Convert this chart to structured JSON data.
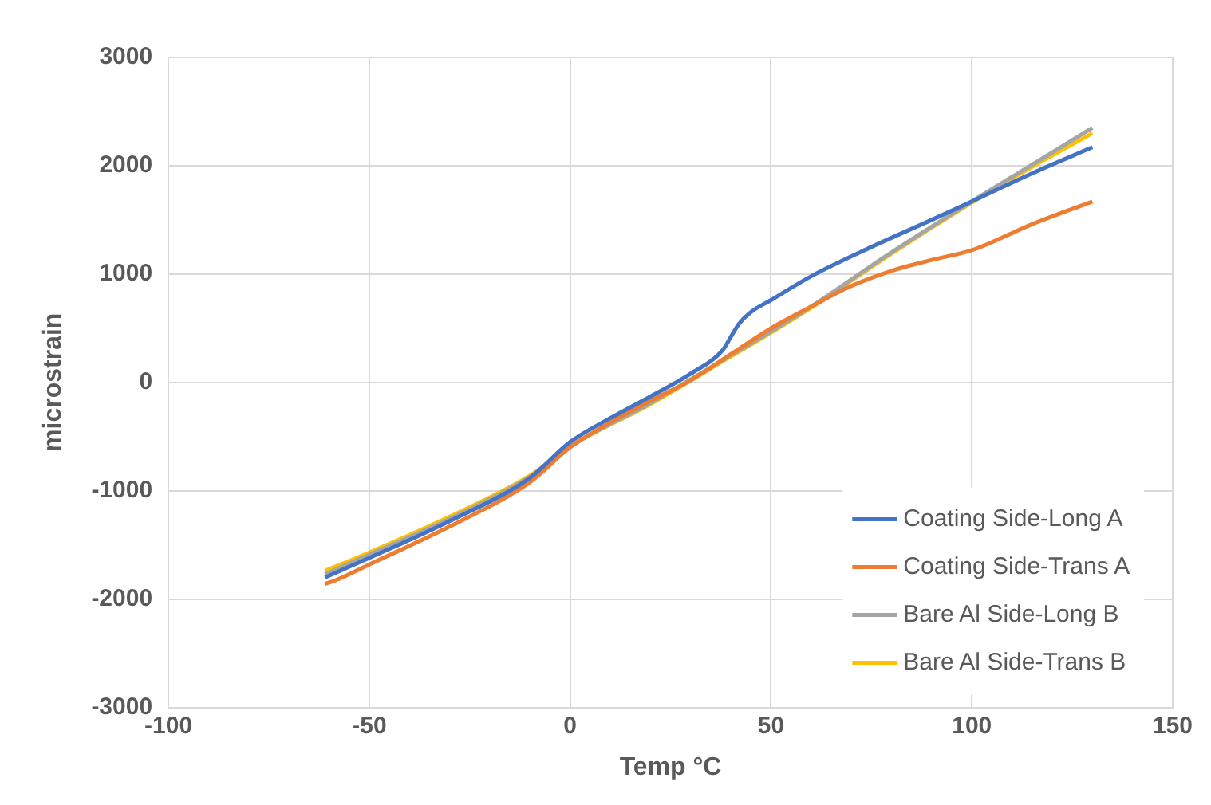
{
  "chart_data": {
    "type": "line",
    "xlabel": "Temp °C",
    "ylabel": "microstrain",
    "xlim": [
      -100,
      150
    ],
    "xticks": [
      -100,
      -50,
      0,
      50,
      100,
      150
    ],
    "ylim": [
      -3000,
      3000
    ],
    "yticks": [
      -3000,
      -2000,
      -1000,
      0,
      1000,
      2000,
      3000
    ],
    "grid": true,
    "legend": "bottom right",
    "marker": "none",
    "line_style": "solid",
    "series": [
      {
        "name": "Coating Side-Long A",
        "color": "#4472c4",
        "x": [
          -61,
          -50,
          -30,
          -10,
          0,
          10,
          20,
          30,
          38,
          40,
          42,
          45,
          50,
          60,
          75,
          90,
          100,
          115,
          130
        ],
        "values": [
          -1800,
          -1620,
          -1280,
          -880,
          -550,
          -330,
          -130,
          80,
          300,
          420,
          540,
          650,
          760,
          980,
          1250,
          1500,
          1670,
          1930,
          2170
        ]
      },
      {
        "name": "Coating Side-Trans A",
        "color": "#ed7d31",
        "x": [
          -61,
          -58,
          -50,
          -30,
          -10,
          0,
          10,
          20,
          30,
          40,
          50,
          60,
          70,
          80,
          90,
          100,
          115,
          130
        ],
        "values": [
          -1860,
          -1820,
          -1680,
          -1330,
          -920,
          -600,
          -370,
          -170,
          20,
          260,
          500,
          700,
          890,
          1030,
          1130,
          1220,
          1460,
          1670
        ]
      },
      {
        "name": "Bare Al Side-Long B",
        "color": "#a5a5a5",
        "x": [
          -61,
          -50,
          -30,
          -10,
          0,
          20,
          40,
          50,
          60,
          80,
          100,
          115,
          130
        ],
        "values": [
          -1770,
          -1590,
          -1260,
          -870,
          -590,
          -190,
          250,
          470,
          700,
          1200,
          1670,
          2010,
          2350
        ]
      },
      {
        "name": "Bare Al Side-Trans B",
        "color": "#ffc000",
        "x": [
          -61,
          -50,
          -30,
          -10,
          0,
          20,
          40,
          50,
          60,
          80,
          100,
          115,
          130
        ],
        "values": [
          -1740,
          -1570,
          -1240,
          -860,
          -590,
          -200,
          240,
          460,
          690,
          1190,
          1660,
          1990,
          2300
        ]
      }
    ]
  }
}
